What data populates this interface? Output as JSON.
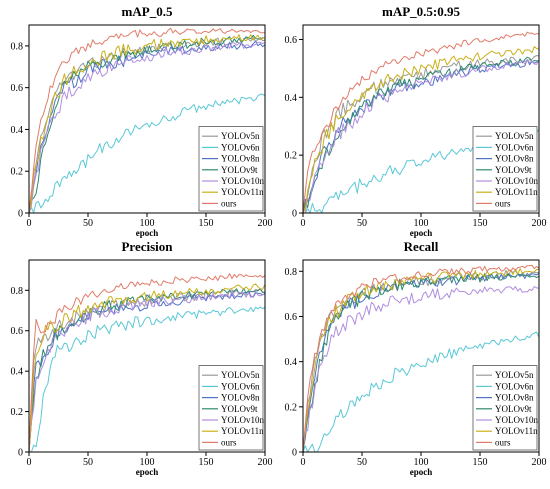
{
  "chart_data": [
    {
      "type": "line",
      "title": "mAP_0.5",
      "xlabel": "epoch",
      "ylabel": "",
      "xlim": [
        0,
        200
      ],
      "ylim": [
        0,
        0.9
      ],
      "xticks": [
        0,
        50,
        100,
        150,
        200
      ],
      "yticks": [
        0,
        0.2,
        0.4,
        0.6,
        0.8
      ],
      "grid": false,
      "legend_position": "bottom-right",
      "x": [
        0,
        5,
        10,
        15,
        20,
        25,
        30,
        40,
        50,
        60,
        70,
        80,
        90,
        100,
        110,
        120,
        130,
        140,
        150,
        160,
        170,
        180,
        190,
        200
      ],
      "series": [
        {
          "name": "YOLOv5n",
          "color": "#9a9a9a",
          "values": [
            0.0,
            0.2,
            0.38,
            0.48,
            0.55,
            0.6,
            0.64,
            0.68,
            0.71,
            0.73,
            0.75,
            0.76,
            0.77,
            0.78,
            0.79,
            0.8,
            0.8,
            0.81,
            0.81,
            0.82,
            0.82,
            0.82,
            0.83,
            0.83
          ]
        },
        {
          "name": "YOLOv6n",
          "color": "#5bc8d6",
          "values": [
            0.0,
            0.02,
            0.05,
            0.08,
            0.1,
            0.13,
            0.16,
            0.21,
            0.26,
            0.3,
            0.34,
            0.37,
            0.4,
            0.42,
            0.44,
            0.46,
            0.48,
            0.5,
            0.51,
            0.52,
            0.53,
            0.54,
            0.55,
            0.56
          ]
        },
        {
          "name": "YOLOv8n",
          "color": "#4e72c4",
          "values": [
            0.0,
            0.15,
            0.3,
            0.4,
            0.48,
            0.55,
            0.6,
            0.64,
            0.68,
            0.7,
            0.72,
            0.73,
            0.75,
            0.76,
            0.77,
            0.78,
            0.78,
            0.79,
            0.79,
            0.8,
            0.8,
            0.8,
            0.81,
            0.81
          ]
        },
        {
          "name": "YOLOv9t",
          "color": "#2e8b6e",
          "values": [
            0.0,
            0.1,
            0.25,
            0.38,
            0.48,
            0.55,
            0.6,
            0.66,
            0.7,
            0.72,
            0.74,
            0.76,
            0.77,
            0.78,
            0.79,
            0.8,
            0.81,
            0.81,
            0.82,
            0.82,
            0.83,
            0.83,
            0.84,
            0.84
          ]
        },
        {
          "name": "YOLOv10n",
          "color": "#b08ee0",
          "values": [
            0.0,
            0.12,
            0.28,
            0.38,
            0.45,
            0.5,
            0.55,
            0.6,
            0.64,
            0.67,
            0.7,
            0.72,
            0.73,
            0.75,
            0.76,
            0.77,
            0.78,
            0.78,
            0.79,
            0.79,
            0.8,
            0.8,
            0.8,
            0.81
          ]
        },
        {
          "name": "YOLOv11n",
          "color": "#c9b018",
          "values": [
            0.0,
            0.2,
            0.35,
            0.45,
            0.52,
            0.58,
            0.63,
            0.68,
            0.72,
            0.74,
            0.76,
            0.78,
            0.79,
            0.8,
            0.81,
            0.81,
            0.82,
            0.82,
            0.83,
            0.83,
            0.83,
            0.84,
            0.84,
            0.84
          ]
        },
        {
          "name": "ours",
          "color": "#e07c6a",
          "values": [
            0.0,
            0.3,
            0.45,
            0.55,
            0.62,
            0.68,
            0.72,
            0.77,
            0.8,
            0.82,
            0.84,
            0.85,
            0.86,
            0.86,
            0.86,
            0.87,
            0.87,
            0.87,
            0.87,
            0.87,
            0.87,
            0.87,
            0.87,
            0.87
          ]
        }
      ]
    },
    {
      "type": "line",
      "title": "mAP_0.5:0.95",
      "xlabel": "epoch",
      "ylabel": "",
      "xlim": [
        0,
        200
      ],
      "ylim": [
        0,
        0.65
      ],
      "xticks": [
        0,
        50,
        100,
        150,
        200
      ],
      "yticks": [
        0,
        0.2,
        0.4,
        0.6
      ],
      "grid": false,
      "legend_position": "bottom-right",
      "x": [
        0,
        5,
        10,
        15,
        20,
        25,
        30,
        40,
        50,
        60,
        70,
        80,
        90,
        100,
        110,
        120,
        130,
        140,
        150,
        160,
        170,
        180,
        190,
        200
      ],
      "series": [
        {
          "name": "YOLOv5n",
          "color": "#9a9a9a",
          "values": [
            0.0,
            0.1,
            0.18,
            0.24,
            0.28,
            0.31,
            0.34,
            0.38,
            0.41,
            0.43,
            0.45,
            0.46,
            0.47,
            0.48,
            0.49,
            0.5,
            0.51,
            0.51,
            0.52,
            0.52,
            0.53,
            0.53,
            0.53,
            0.54
          ]
        },
        {
          "name": "YOLOv6n",
          "color": "#5bc8d6",
          "values": [
            0.0,
            0.0,
            0.01,
            0.02,
            0.04,
            0.05,
            0.06,
            0.08,
            0.1,
            0.12,
            0.14,
            0.15,
            0.17,
            0.18,
            0.19,
            0.2,
            0.21,
            0.22,
            0.23,
            0.24,
            0.25,
            0.26,
            0.27,
            0.28
          ]
        },
        {
          "name": "YOLOv8n",
          "color": "#4e72c4",
          "values": [
            0.0,
            0.05,
            0.12,
            0.18,
            0.23,
            0.26,
            0.29,
            0.33,
            0.36,
            0.39,
            0.41,
            0.43,
            0.44,
            0.45,
            0.46,
            0.47,
            0.48,
            0.49,
            0.5,
            0.5,
            0.51,
            0.51,
            0.52,
            0.52
          ]
        },
        {
          "name": "YOLOv9t",
          "color": "#2e8b6e",
          "values": [
            0.0,
            0.04,
            0.1,
            0.16,
            0.21,
            0.25,
            0.28,
            0.33,
            0.37,
            0.4,
            0.42,
            0.44,
            0.45,
            0.46,
            0.47,
            0.48,
            0.49,
            0.5,
            0.51,
            0.51,
            0.52,
            0.52,
            0.53,
            0.53
          ]
        },
        {
          "name": "YOLOv10n",
          "color": "#b08ee0",
          "values": [
            0.0,
            0.05,
            0.11,
            0.16,
            0.2,
            0.24,
            0.27,
            0.31,
            0.35,
            0.38,
            0.4,
            0.42,
            0.43,
            0.45,
            0.46,
            0.47,
            0.48,
            0.49,
            0.5,
            0.5,
            0.51,
            0.51,
            0.52,
            0.52
          ]
        },
        {
          "name": "YOLOv11n",
          "color": "#c9b018",
          "values": [
            0.0,
            0.08,
            0.16,
            0.22,
            0.27,
            0.3,
            0.33,
            0.38,
            0.41,
            0.44,
            0.46,
            0.48,
            0.49,
            0.5,
            0.51,
            0.52,
            0.53,
            0.54,
            0.54,
            0.55,
            0.55,
            0.56,
            0.56,
            0.57
          ]
        },
        {
          "name": "ours",
          "color": "#e07c6a",
          "values": [
            0.0,
            0.18,
            0.22,
            0.26,
            0.3,
            0.34,
            0.37,
            0.42,
            0.46,
            0.49,
            0.51,
            0.53,
            0.54,
            0.55,
            0.56,
            0.57,
            0.58,
            0.59,
            0.6,
            0.6,
            0.61,
            0.61,
            0.62,
            0.62
          ]
        }
      ]
    },
    {
      "type": "line",
      "title": "Precision",
      "xlabel": "epoch",
      "ylabel": "",
      "xlim": [
        0,
        200
      ],
      "ylim": [
        0,
        0.95
      ],
      "xticks": [
        0,
        50,
        100,
        150,
        200
      ],
      "yticks": [
        0,
        0.2,
        0.4,
        0.6,
        0.8
      ],
      "grid": false,
      "legend_position": "bottom-right",
      "x": [
        0,
        5,
        10,
        15,
        20,
        25,
        30,
        40,
        50,
        60,
        70,
        80,
        90,
        100,
        110,
        120,
        130,
        140,
        150,
        160,
        170,
        180,
        190,
        200
      ],
      "series": [
        {
          "name": "YOLOv5n",
          "color": "#9a9a9a",
          "values": [
            0.0,
            0.55,
            0.55,
            0.58,
            0.6,
            0.62,
            0.64,
            0.67,
            0.69,
            0.71,
            0.72,
            0.73,
            0.74,
            0.75,
            0.76,
            0.76,
            0.77,
            0.77,
            0.78,
            0.78,
            0.79,
            0.79,
            0.79,
            0.8
          ]
        },
        {
          "name": "YOLOv6n",
          "color": "#5bc8d6",
          "values": [
            0.0,
            0.0,
            0.2,
            0.35,
            0.45,
            0.5,
            0.52,
            0.55,
            0.57,
            0.6,
            0.62,
            0.63,
            0.64,
            0.65,
            0.66,
            0.67,
            0.67,
            0.68,
            0.69,
            0.69,
            0.7,
            0.7,
            0.71,
            0.71
          ]
        },
        {
          "name": "YOLOv8n",
          "color": "#4e72c4",
          "values": [
            0.0,
            0.4,
            0.45,
            0.5,
            0.55,
            0.58,
            0.6,
            0.64,
            0.66,
            0.68,
            0.7,
            0.71,
            0.72,
            0.73,
            0.74,
            0.74,
            0.75,
            0.76,
            0.76,
            0.77,
            0.77,
            0.78,
            0.78,
            0.78
          ]
        },
        {
          "name": "YOLOv9t",
          "color": "#2e8b6e",
          "values": [
            0.0,
            0.35,
            0.45,
            0.52,
            0.56,
            0.6,
            0.62,
            0.66,
            0.69,
            0.71,
            0.72,
            0.73,
            0.74,
            0.75,
            0.76,
            0.77,
            0.77,
            0.78,
            0.78,
            0.79,
            0.79,
            0.8,
            0.8,
            0.8
          ]
        },
        {
          "name": "YOLOv10n",
          "color": "#b08ee0",
          "values": [
            0.0,
            0.3,
            0.42,
            0.5,
            0.55,
            0.58,
            0.61,
            0.64,
            0.67,
            0.69,
            0.7,
            0.72,
            0.73,
            0.74,
            0.74,
            0.75,
            0.76,
            0.76,
            0.77,
            0.77,
            0.78,
            0.78,
            0.78,
            0.79
          ]
        },
        {
          "name": "YOLOv11n",
          "color": "#c9b018",
          "values": [
            0.0,
            0.5,
            0.55,
            0.6,
            0.62,
            0.64,
            0.66,
            0.69,
            0.71,
            0.73,
            0.74,
            0.75,
            0.76,
            0.77,
            0.78,
            0.78,
            0.79,
            0.79,
            0.8,
            0.8,
            0.81,
            0.81,
            0.82,
            0.82
          ]
        },
        {
          "name": "ours",
          "color": "#e07c6a",
          "values": [
            0.0,
            0.65,
            0.6,
            0.62,
            0.65,
            0.68,
            0.7,
            0.74,
            0.77,
            0.79,
            0.8,
            0.82,
            0.83,
            0.84,
            0.84,
            0.85,
            0.85,
            0.86,
            0.86,
            0.86,
            0.87,
            0.87,
            0.87,
            0.87
          ]
        }
      ]
    },
    {
      "type": "line",
      "title": "Recall",
      "xlabel": "epoch",
      "ylabel": "",
      "xlim": [
        0,
        200
      ],
      "ylim": [
        0,
        0.85
      ],
      "xticks": [
        0,
        50,
        100,
        150,
        200
      ],
      "yticks": [
        0,
        0.2,
        0.4,
        0.6,
        0.8
      ],
      "grid": false,
      "legend_position": "bottom-right",
      "x": [
        0,
        5,
        10,
        15,
        20,
        25,
        30,
        40,
        50,
        60,
        70,
        80,
        90,
        100,
        110,
        120,
        130,
        140,
        150,
        160,
        170,
        180,
        190,
        200
      ],
      "series": [
        {
          "name": "YOLOv5n",
          "color": "#9a9a9a",
          "values": [
            0.0,
            0.25,
            0.4,
            0.5,
            0.56,
            0.6,
            0.63,
            0.67,
            0.7,
            0.72,
            0.73,
            0.74,
            0.75,
            0.76,
            0.76,
            0.77,
            0.77,
            0.78,
            0.78,
            0.78,
            0.79,
            0.79,
            0.79,
            0.79
          ]
        },
        {
          "name": "YOLOv6n",
          "color": "#5bc8d6",
          "values": [
            0.0,
            0.0,
            0.01,
            0.04,
            0.08,
            0.12,
            0.15,
            0.2,
            0.25,
            0.29,
            0.32,
            0.35,
            0.37,
            0.39,
            0.41,
            0.43,
            0.44,
            0.46,
            0.47,
            0.48,
            0.49,
            0.5,
            0.51,
            0.52
          ]
        },
        {
          "name": "YOLOv8n",
          "color": "#4e72c4",
          "values": [
            0.0,
            0.2,
            0.35,
            0.45,
            0.52,
            0.57,
            0.6,
            0.65,
            0.68,
            0.7,
            0.72,
            0.73,
            0.74,
            0.75,
            0.75,
            0.76,
            0.76,
            0.77,
            0.77,
            0.77,
            0.78,
            0.78,
            0.78,
            0.78
          ]
        },
        {
          "name": "YOLOv9t",
          "color": "#2e8b6e",
          "values": [
            0.0,
            0.15,
            0.3,
            0.42,
            0.5,
            0.56,
            0.6,
            0.65,
            0.69,
            0.71,
            0.73,
            0.74,
            0.75,
            0.75,
            0.76,
            0.76,
            0.76,
            0.77,
            0.77,
            0.77,
            0.77,
            0.78,
            0.78,
            0.78
          ]
        },
        {
          "name": "YOLOv10n",
          "color": "#b08ee0",
          "values": [
            0.0,
            0.15,
            0.28,
            0.38,
            0.45,
            0.5,
            0.54,
            0.58,
            0.61,
            0.64,
            0.66,
            0.67,
            0.68,
            0.69,
            0.7,
            0.7,
            0.71,
            0.71,
            0.71,
            0.72,
            0.72,
            0.72,
            0.72,
            0.72
          ]
        },
        {
          "name": "YOLOv11n",
          "color": "#c9b018",
          "values": [
            0.0,
            0.2,
            0.38,
            0.48,
            0.55,
            0.6,
            0.63,
            0.68,
            0.71,
            0.73,
            0.74,
            0.75,
            0.76,
            0.77,
            0.77,
            0.78,
            0.78,
            0.78,
            0.79,
            0.79,
            0.79,
            0.8,
            0.8,
            0.8
          ]
        },
        {
          "name": "ours",
          "color": "#e07c6a",
          "values": [
            0.0,
            0.3,
            0.42,
            0.52,
            0.58,
            0.63,
            0.66,
            0.7,
            0.73,
            0.75,
            0.76,
            0.77,
            0.78,
            0.79,
            0.79,
            0.8,
            0.8,
            0.8,
            0.81,
            0.81,
            0.81,
            0.81,
            0.82,
            0.82
          ]
        }
      ]
    }
  ]
}
